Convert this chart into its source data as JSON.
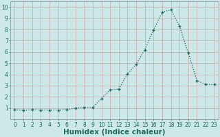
{
  "x": [
    0,
    1,
    2,
    3,
    4,
    5,
    6,
    7,
    8,
    9,
    10,
    11,
    12,
    13,
    14,
    15,
    16,
    17,
    18,
    19,
    20,
    21,
    22,
    23
  ],
  "y": [
    0.85,
    0.8,
    0.85,
    0.82,
    0.82,
    0.82,
    0.85,
    1.0,
    1.05,
    1.05,
    1.85,
    2.6,
    2.7,
    4.05,
    4.9,
    6.2,
    7.95,
    9.55,
    9.75,
    8.3,
    5.9,
    3.45,
    3.1,
    3.1
  ],
  "xlabel": "Humidex (Indice chaleur)",
  "ylabel": "",
  "xlim": [
    -0.5,
    23.5
  ],
  "ylim": [
    0,
    10.5
  ],
  "yticks": [
    1,
    2,
    3,
    4,
    5,
    6,
    7,
    8,
    9,
    10
  ],
  "xticks": [
    0,
    1,
    2,
    3,
    4,
    5,
    6,
    7,
    8,
    9,
    10,
    11,
    12,
    13,
    14,
    15,
    16,
    17,
    18,
    19,
    20,
    21,
    22,
    23
  ],
  "line_color": "#1a6b5a",
  "marker_color": "#1a6b5a",
  "bg_color": "#cce8e8",
  "grid_color": "#b8d8d8",
  "tick_label_fontsize": 5.5,
  "xlabel_fontsize": 7.5,
  "xlabel_fontweight": "bold"
}
